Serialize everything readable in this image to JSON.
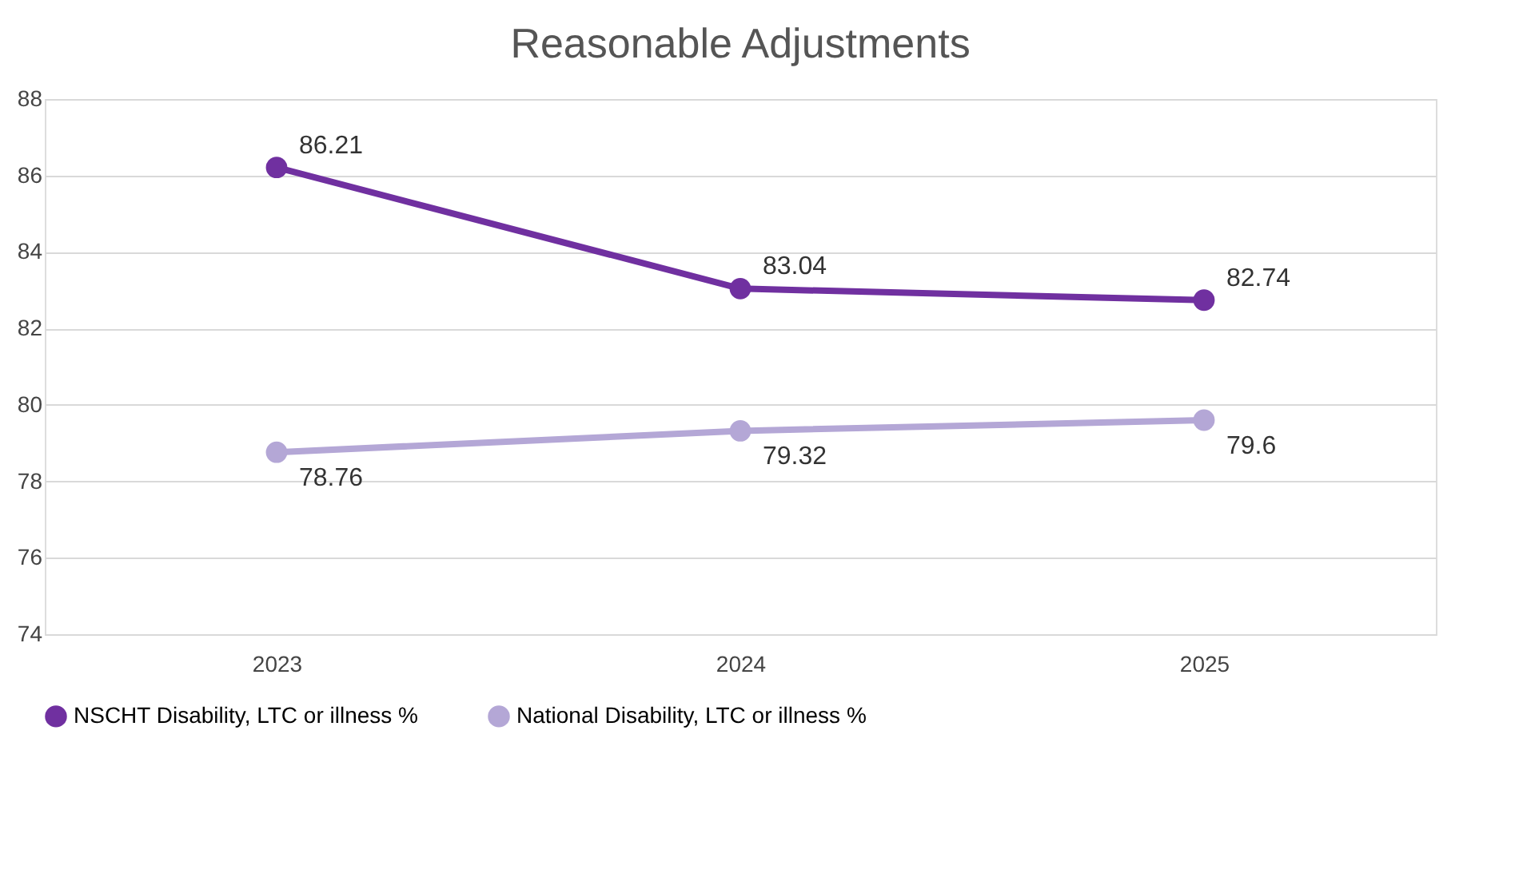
{
  "chart_data": {
    "type": "line",
    "title": "Reasonable Adjustments",
    "categories": [
      "2023",
      "2024",
      "2025"
    ],
    "series": [
      {
        "name": "NSCHT Disability, LTC or illness %",
        "color": "#7030a0",
        "values": [
          86.21,
          83.04,
          82.74
        ]
      },
      {
        "name": "National Disability, LTC or illness %",
        "color": "#b4a7d6",
        "values": [
          78.76,
          79.32,
          79.6
        ]
      }
    ],
    "ylim": [
      74,
      88
    ],
    "yticks": [
      74,
      76,
      78,
      80,
      82,
      84,
      86,
      88
    ],
    "grid": "y",
    "legend": "bottom",
    "marker": "circle",
    "line_style": "solid",
    "data_labels": true
  }
}
